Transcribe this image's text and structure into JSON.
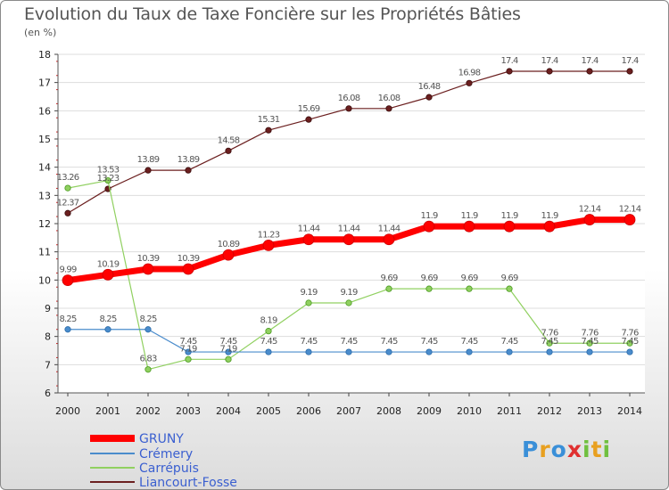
{
  "chart_data": {
    "type": "line",
    "title": "Evolution du Taux de Taxe Foncière sur les Propriétés Bâties",
    "ylabel": "(en %)",
    "xlabel": "",
    "ylim": [
      6,
      18
    ],
    "yticks": [
      "6",
      "7",
      "8",
      "9",
      "10",
      "11",
      "12",
      "13",
      "14",
      "15",
      "16",
      "17",
      "18"
    ],
    "categories": [
      "2000",
      "2001",
      "2002",
      "2003",
      "2004",
      "2005",
      "2006",
      "2007",
      "2008",
      "2009",
      "2010",
      "2011",
      "2012",
      "2013",
      "2014"
    ],
    "series": [
      {
        "name": "GRUNY",
        "color": "#ff0000",
        "values": [
          9.99,
          10.19,
          10.39,
          10.39,
          10.89,
          11.23,
          11.44,
          11.44,
          11.44,
          11.9,
          11.9,
          11.9,
          11.9,
          12.14,
          12.14
        ],
        "labels": [
          "9.99",
          "10.19",
          "10.39",
          "10.39",
          "10.89",
          "11.23",
          "11.44",
          "11.44",
          "11.44",
          "11.9",
          "11.9",
          "11.9",
          "11.9",
          "12.14",
          "12.14"
        ]
      },
      {
        "name": "Crémery",
        "color": "#4a8ccc",
        "values": [
          8.25,
          8.25,
          8.25,
          7.45,
          7.45,
          7.45,
          7.45,
          7.45,
          7.45,
          7.45,
          7.45,
          7.45,
          7.45,
          7.45,
          7.45
        ],
        "labels": [
          "8.25",
          "8.25",
          "8.25",
          "7.45",
          "7.45",
          "7.45",
          "7.45",
          "7.45",
          "7.45",
          "7.45",
          "7.45",
          "7.45",
          "7.45",
          "7.45",
          "7.45"
        ]
      },
      {
        "name": "Carrépuis",
        "color": "#90d060",
        "values": [
          13.26,
          13.53,
          6.83,
          7.19,
          7.19,
          8.19,
          9.19,
          9.19,
          9.69,
          9.69,
          9.69,
          9.69,
          7.76,
          7.76,
          7.76
        ],
        "labels": [
          "13.26",
          "13.53",
          "6.83",
          "7.19",
          "7.19",
          "8.19",
          "9.19",
          "9.19",
          "9.69",
          "9.69",
          "9.69",
          "9.69",
          "7.76",
          "7.76",
          "7.76"
        ]
      },
      {
        "name": "Liancourt-Fosse",
        "color": "#6b1f1f",
        "values": [
          12.37,
          13.23,
          13.89,
          13.89,
          14.58,
          15.31,
          15.69,
          16.08,
          16.08,
          16.48,
          16.98,
          17.4,
          17.4,
          17.4,
          17.4
        ],
        "labels": [
          "12.37",
          "13.23",
          "13.89",
          "13.89",
          "14.58",
          "15.31",
          "15.69",
          "16.08",
          "16.08",
          "16.48",
          "16.98",
          "17.4",
          "17.4",
          "17.4",
          "17.4"
        ]
      }
    ],
    "legend": "bottom-left"
  },
  "brand": {
    "letters": [
      "P",
      "r",
      "o",
      "x",
      "i",
      "t",
      "i"
    ],
    "colors": [
      "#3a8fd8",
      "#e8a020",
      "#3a8fd8",
      "#e03030",
      "#70c040",
      "#e8a020",
      "#70c040"
    ]
  }
}
